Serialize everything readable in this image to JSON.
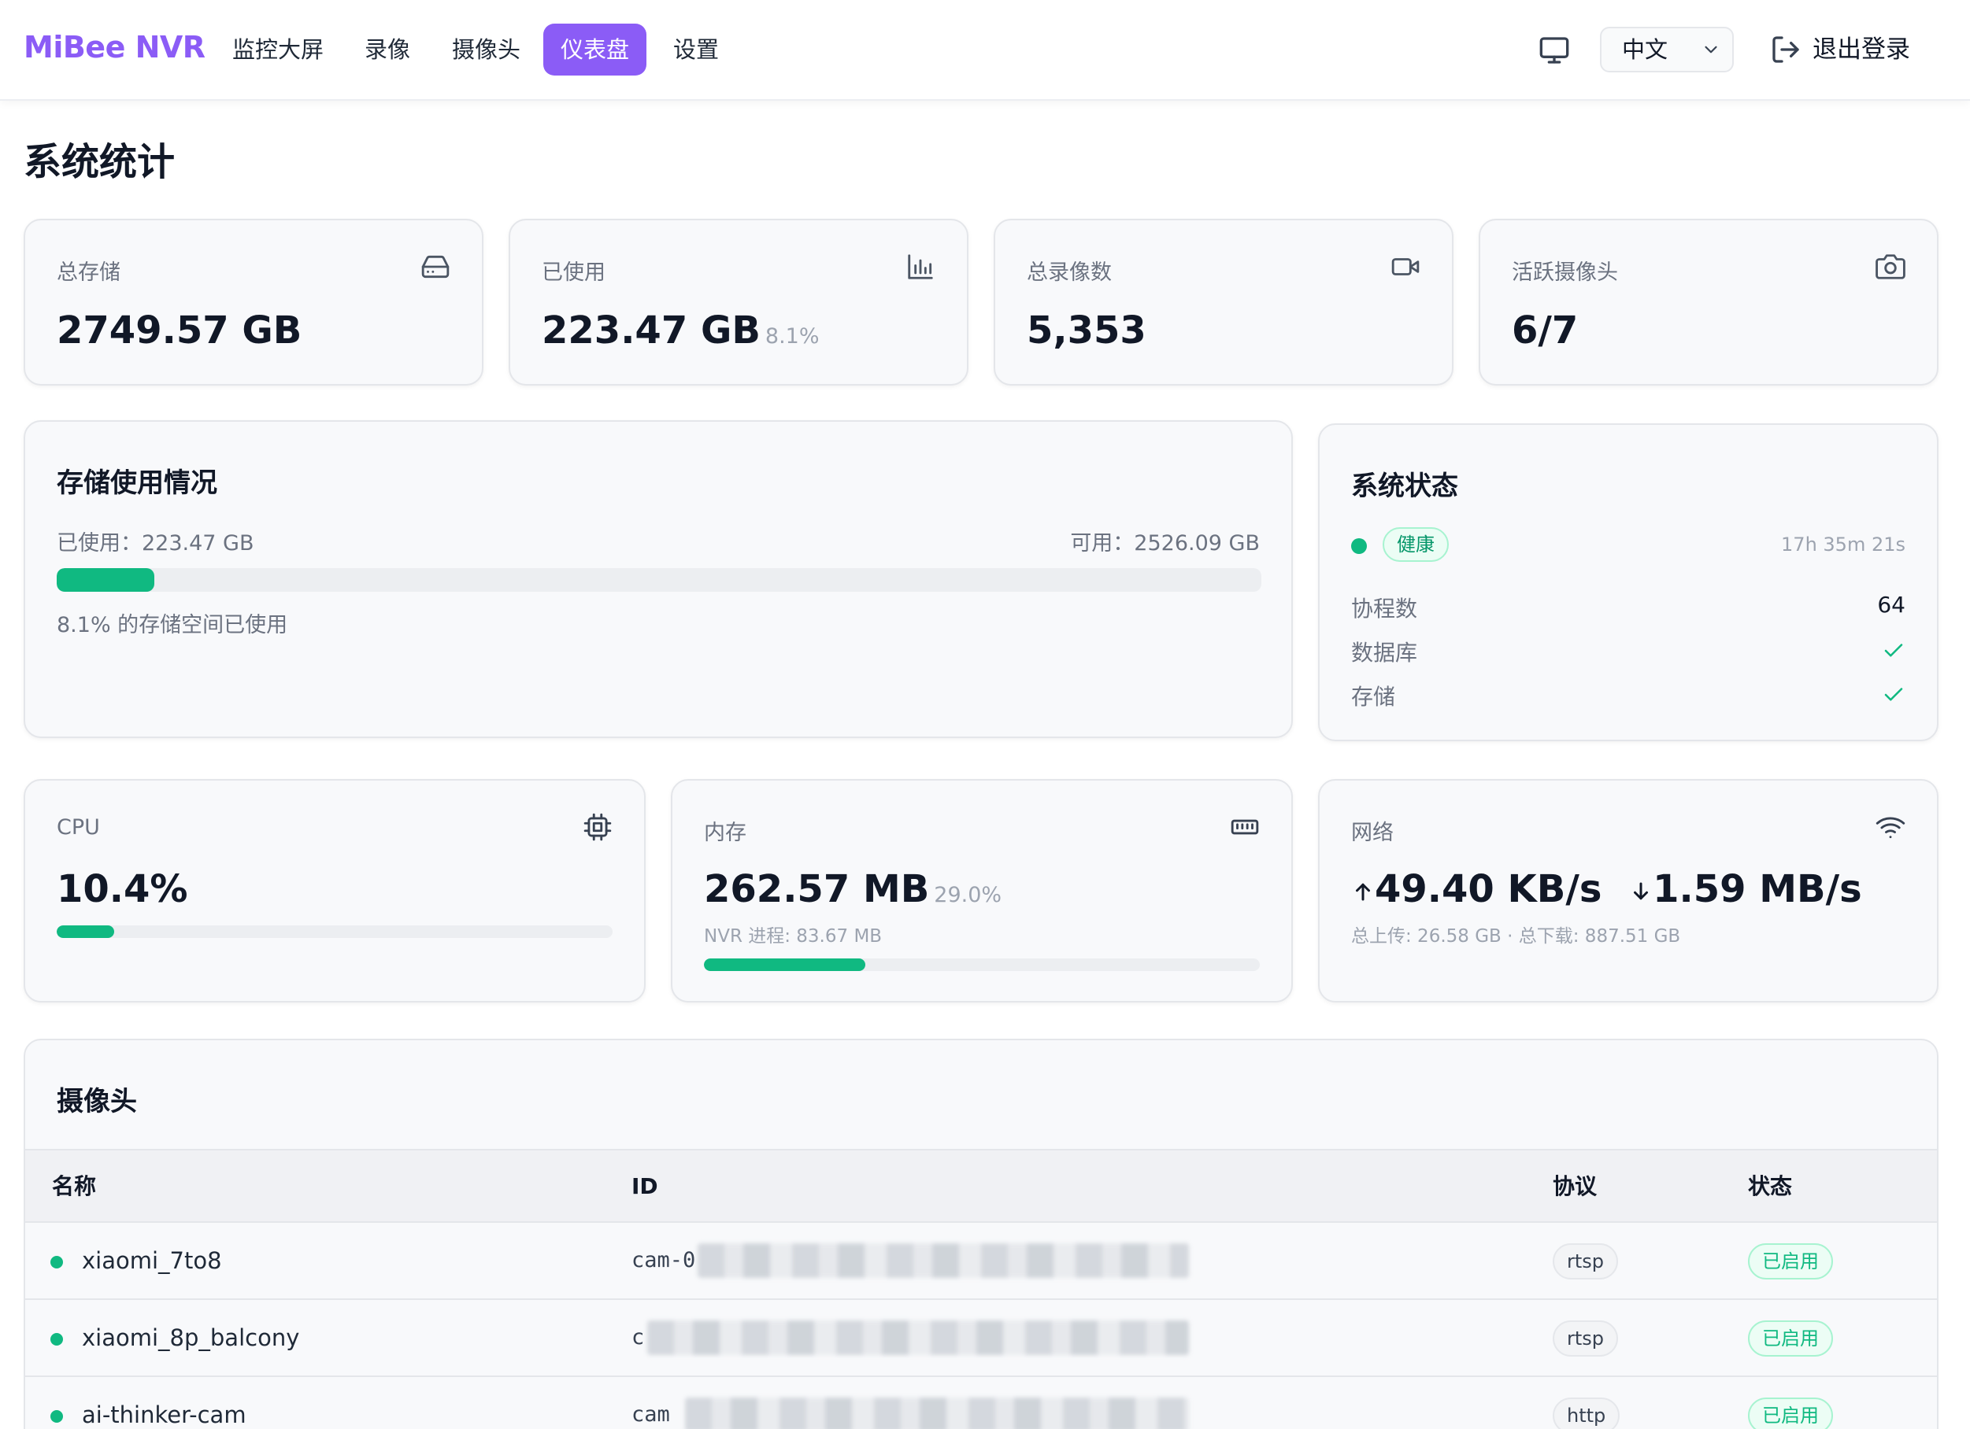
{
  "nav": {
    "brand": "MiBee NVR",
    "links": [
      "监控大屏",
      "录像",
      "摄像头",
      "仪表盘",
      "设置"
    ],
    "active_index": 3,
    "language": "中文",
    "logout": "退出登录"
  },
  "page_title": "系统统计",
  "stats": {
    "total_storage": {
      "label": "总存储",
      "value": "2749.57 GB",
      "icon": "hard-drive-icon"
    },
    "used": {
      "label": "已使用",
      "value": "223.47 GB",
      "sub": "8.1%",
      "icon": "bar-chart-icon"
    },
    "recordings": {
      "label": "总录像数",
      "value": "5,353",
      "icon": "video-camera-icon"
    },
    "active_cameras": {
      "label": "活跃摄像头",
      "value": "6/7",
      "icon": "camera-icon"
    }
  },
  "storage_usage": {
    "title": "存储使用情况",
    "used_text": "已使用：223.47 GB",
    "available_text": "可用：2526.09 GB",
    "percent": 8.1,
    "caption": "8.1% 的存储空间已使用"
  },
  "system_status": {
    "title": "系统状态",
    "health": "健康",
    "uptime": "17h 35m 21s",
    "rows": [
      {
        "label": "协程数",
        "value": "64"
      },
      {
        "label": "数据库",
        "value": "ok"
      },
      {
        "label": "存储",
        "value": "ok"
      }
    ]
  },
  "cpu": {
    "label": "CPU",
    "value": "10.4%",
    "percent": 10.4,
    "icon": "cpu-icon"
  },
  "memory": {
    "label": "内存",
    "value": "262.57 MB",
    "sub": "29.0%",
    "detail": "NVR 进程: 83.67 MB",
    "percent": 29.0,
    "icon": "memory-icon"
  },
  "network": {
    "label": "网络",
    "upload": "49.40 KB/s",
    "download": "1.59 MB/s",
    "detail": "总上传: 26.58 GB · 总下载: 887.51 GB",
    "icon": "wifi-icon"
  },
  "cameras": {
    "title": "摄像头",
    "headers": {
      "name": "名称",
      "id": "ID",
      "protocol": "协议",
      "status": "状态"
    },
    "rows": [
      {
        "name": "xiaomi_7to8",
        "id": "cam-0",
        "protocol": "rtsp",
        "status": "已启用"
      },
      {
        "name": "xiaomi_8p_balcony",
        "id": "c",
        "protocol": "rtsp",
        "status": "已启用"
      },
      {
        "name": "ai-thinker-cam",
        "id": "cam",
        "protocol": "http",
        "status": "已启用"
      }
    ]
  },
  "colors": {
    "accent": "#8b5cf6",
    "success": "#10b981"
  }
}
